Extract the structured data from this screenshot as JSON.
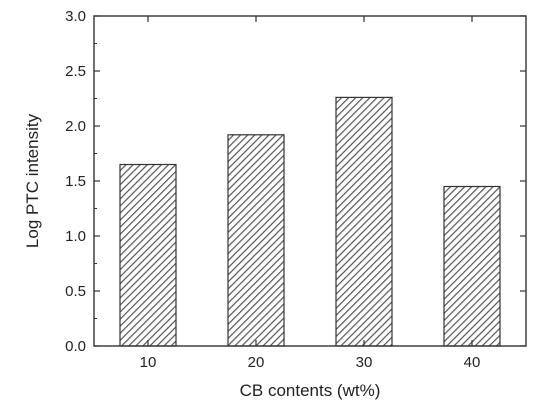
{
  "chart_data": {
    "type": "bar",
    "categories": [
      "10",
      "20",
      "30",
      "40"
    ],
    "values": [
      1.65,
      1.92,
      2.26,
      1.45
    ],
    "xlabel": "CB contents (wt%)",
    "ylabel": "Log PTC intensity",
    "ylim": [
      0.0,
      3.0
    ],
    "yticks": [
      "0.0",
      "0.5",
      "1.0",
      "1.5",
      "2.0",
      "2.5",
      "3.0"
    ],
    "grid": false,
    "bar_fill": "hatched diagonal",
    "colors": {
      "bar_edge": "#333333",
      "hatch": "#555555",
      "axis": "#333333"
    }
  }
}
